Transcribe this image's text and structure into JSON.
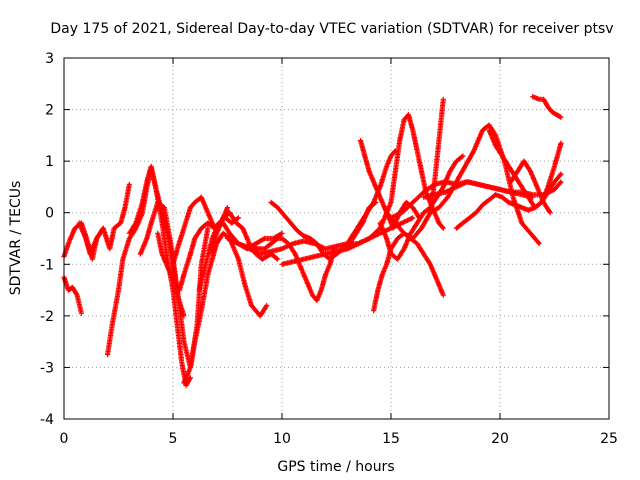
{
  "chart_data": {
    "type": "scatter",
    "title": "Day 175 of 2021, Sidereal Day-to-day VTEC variation (SDTVAR) for receiver ptsv",
    "xlabel": "GPS time / hours",
    "ylabel": "SDTVAR / TECUs",
    "xlim": [
      0,
      25
    ],
    "ylim": [
      -4,
      3
    ],
    "xticks": [
      "0",
      "5",
      "10",
      "15",
      "20",
      "25"
    ],
    "yticks": [
      "-4",
      "-3",
      "-2",
      "-1",
      "0",
      "1",
      "2",
      "3"
    ],
    "grid": true,
    "marker": "plus",
    "color": "#ff0000",
    "series": [
      {
        "x": [
          0.0,
          0.2,
          0.5,
          0.8,
          1.0,
          1.3,
          1.5,
          1.8,
          2.1,
          2.3,
          2.6,
          2.8,
          3.0
        ],
        "y": [
          -0.85,
          -0.6,
          -0.3,
          -0.2,
          -0.45,
          -0.9,
          -0.5,
          -0.3,
          -0.7,
          -0.3,
          -0.2,
          0.1,
          0.55
        ]
      },
      {
        "x": [
          0.0,
          0.2,
          0.4,
          0.6,
          0.8
        ],
        "y": [
          -1.25,
          -1.5,
          -1.45,
          -1.6,
          -1.95
        ]
      },
      {
        "x": [
          0.7,
          1.0,
          1.2,
          1.5,
          1.8
        ],
        "y": [
          -0.2,
          -0.5,
          -0.8,
          -0.5,
          -0.3
        ]
      },
      {
        "x": [
          2.0,
          2.2,
          2.5,
          2.7,
          3.0,
          3.3,
          3.6,
          3.8,
          4.0,
          4.2,
          4.5,
          4.7,
          5.0,
          5.2,
          5.4,
          5.6,
          5.8
        ],
        "y": [
          -2.75,
          -2.2,
          -1.5,
          -0.9,
          -0.5,
          -0.3,
          0.0,
          0.5,
          0.85,
          0.5,
          -0.2,
          -0.8,
          -1.5,
          -2.2,
          -2.9,
          -3.35,
          -3.2
        ]
      },
      {
        "x": [
          3.0,
          3.3,
          3.6,
          3.8,
          4.0,
          4.2,
          4.5,
          4.8,
          5.0,
          5.2,
          5.5
        ],
        "y": [
          -0.4,
          -0.2,
          0.2,
          0.6,
          0.9,
          0.5,
          0.0,
          -0.5,
          -1.0,
          -1.6,
          -2.0
        ]
      },
      {
        "x": [
          3.5,
          3.8,
          4.0,
          4.3,
          4.6,
          4.9,
          5.2,
          5.5,
          5.8,
          6.1,
          6.3,
          6.6
        ],
        "y": [
          -0.8,
          -0.5,
          -0.2,
          0.2,
          0.1,
          -0.6,
          -1.5,
          -2.5,
          -3.0,
          -2.2,
          -1.0,
          -0.3
        ]
      },
      {
        "x": [
          5.0,
          5.2,
          5.5,
          5.8,
          6.0,
          6.3,
          6.6,
          6.9,
          7.2,
          7.5
        ],
        "y": [
          -1.0,
          -0.7,
          -0.3,
          0.1,
          0.2,
          0.3,
          0.0,
          -0.3,
          -0.2,
          0.1
        ]
      },
      {
        "x": [
          4.3,
          4.5,
          4.8,
          5.0,
          5.3,
          5.5,
          5.8,
          6.0,
          6.3,
          6.6,
          6.9,
          7.1,
          7.4,
          7.7,
          8.0
        ],
        "y": [
          -0.4,
          -0.8,
          -1.1,
          -1.3,
          -1.5,
          -1.2,
          -0.8,
          -0.5,
          -0.3,
          -0.2,
          -0.3,
          -0.2,
          -0.1,
          -0.2,
          -0.1
        ]
      },
      {
        "x": [
          5.5,
          5.8,
          6.0,
          6.3,
          6.6,
          7.0,
          7.3,
          7.6,
          8.0,
          8.3,
          8.6,
          9.0,
          9.3
        ],
        "y": [
          -3.3,
          -3.0,
          -2.5,
          -1.9,
          -1.2,
          -0.6,
          -0.4,
          -0.5,
          -0.9,
          -1.4,
          -1.8,
          -2.0,
          -1.8
        ]
      },
      {
        "x": [
          6.2,
          6.5,
          6.8,
          7.0,
          7.3,
          7.6,
          8.0,
          8.4,
          8.8,
          9.2,
          9.6,
          10.0
        ],
        "y": [
          -1.5,
          -1.0,
          -0.5,
          -0.3,
          -0.2,
          -0.4,
          -0.6,
          -0.7,
          -0.6,
          -0.5,
          -0.5,
          -0.4
        ]
      },
      {
        "x": [
          6.8,
          7.0,
          7.3,
          7.6,
          7.9,
          8.2,
          8.5,
          8.8,
          9.1,
          9.5,
          9.8
        ],
        "y": [
          -0.8,
          -0.4,
          -0.1,
          0.0,
          -0.2,
          -0.3,
          -0.6,
          -0.8,
          -0.9,
          -0.8,
          -0.9
        ]
      },
      {
        "x": [
          7.8,
          8.0,
          8.3,
          8.6,
          8.9,
          9.2,
          9.5,
          9.8,
          10.0,
          10.3,
          10.6,
          10.9,
          11.2,
          11.4,
          11.6,
          11.8,
          12.0,
          12.2,
          12.4
        ],
        "y": [
          -0.55,
          -0.6,
          -0.65,
          -0.65,
          -0.7,
          -0.7,
          -0.6,
          -0.5,
          -0.5,
          -0.6,
          -0.8,
          -1.1,
          -1.4,
          -1.6,
          -1.7,
          -1.5,
          -1.2,
          -1.0,
          -0.7
        ]
      },
      {
        "x": [
          7.5,
          8.0,
          8.5,
          9.0,
          9.5,
          10.0,
          10.5,
          11.0,
          11.5,
          12.0,
          12.5,
          13.0,
          13.5,
          14.0
        ],
        "y": [
          -0.5,
          -0.6,
          -0.7,
          -0.8,
          -0.75,
          -0.7,
          -0.6,
          -0.55,
          -0.6,
          -0.7,
          -0.65,
          -0.6,
          -0.6,
          -0.5
        ]
      },
      {
        "x": [
          9.5,
          9.8,
          10.1,
          10.4,
          10.7,
          11.0,
          11.3,
          11.6,
          11.9,
          12.2,
          12.5,
          12.8,
          13.1,
          13.4,
          13.7,
          14.0,
          14.3
        ],
        "y": [
          0.2,
          0.1,
          -0.05,
          -0.2,
          -0.35,
          -0.45,
          -0.5,
          -0.6,
          -0.8,
          -0.9,
          -0.8,
          -0.7,
          -0.6,
          -0.4,
          -0.2,
          0.1,
          0.2
        ]
      },
      {
        "x": [
          10.0,
          10.5,
          11.0,
          11.5,
          12.0,
          12.5,
          13.0,
          13.5,
          14.0,
          14.5,
          15.0,
          15.5,
          16.0
        ],
        "y": [
          -1.0,
          -0.95,
          -0.9,
          -0.85,
          -0.8,
          -0.75,
          -0.7,
          -0.6,
          -0.5,
          -0.4,
          -0.3,
          -0.2,
          -0.1
        ]
      },
      {
        "x": [
          12.5,
          13.0,
          13.3,
          13.6,
          13.9,
          14.2,
          14.5,
          14.8,
          15.0,
          15.2
        ],
        "y": [
          -0.8,
          -0.6,
          -0.4,
          -0.2,
          0.0,
          0.2,
          0.5,
          0.9,
          1.1,
          1.2
        ]
      },
      {
        "x": [
          13.0,
          13.5,
          14.0,
          14.5,
          15.0,
          15.2,
          15.4,
          15.6,
          15.8,
          16.0,
          16.2,
          16.4,
          16.6,
          16.8,
          17.0,
          17.2,
          17.4
        ],
        "y": [
          -0.7,
          -0.6,
          -0.5,
          -0.3,
          0.2,
          0.8,
          1.4,
          1.8,
          1.9,
          1.6,
          1.2,
          0.8,
          0.4,
          0.2,
          0.0,
          -0.2,
          -0.3
        ]
      },
      {
        "x": [
          14.2,
          14.4,
          14.6,
          14.8,
          15.0,
          15.3,
          15.6,
          15.9,
          16.2,
          16.5,
          16.8,
          17.1,
          17.4
        ],
        "y": [
          -1.9,
          -1.5,
          -1.2,
          -1.0,
          -0.7,
          -0.5,
          -0.4,
          -0.5,
          -0.6,
          -0.8,
          -1.0,
          -1.3,
          -1.6
        ]
      },
      {
        "x": [
          13.6,
          13.8,
          14.0,
          14.3,
          14.6,
          14.9,
          15.1,
          15.4,
          15.7,
          16.0,
          16.3
        ],
        "y": [
          1.4,
          1.1,
          0.8,
          0.5,
          0.2,
          -0.1,
          -0.3,
          0.0,
          0.2,
          0.1,
          -0.1
        ]
      },
      {
        "x": [
          14.8,
          15.2,
          15.6,
          16.0,
          16.4,
          16.8,
          17.0,
          17.2,
          17.4
        ],
        "y": [
          0.0,
          -0.2,
          -0.4,
          -0.5,
          -0.3,
          0.0,
          0.6,
          1.4,
          2.2
        ]
      },
      {
        "x": [
          14.5,
          14.8,
          15.0,
          15.3,
          15.6,
          15.9,
          16.2,
          16.5,
          16.8,
          17.1,
          17.4,
          17.7,
          18.0,
          18.3
        ],
        "y": [
          -0.2,
          -0.5,
          -0.8,
          -0.9,
          -0.7,
          -0.4,
          -0.2,
          0.0,
          0.1,
          0.3,
          0.5,
          0.8,
          1.0,
          1.1
        ]
      },
      {
        "x": [
          15.0,
          15.5,
          16.0,
          16.5,
          17.0,
          17.5,
          18.0,
          18.5,
          19.0,
          19.5,
          20.0,
          20.5,
          21.0,
          21.5
        ],
        "y": [
          -0.1,
          0.0,
          0.2,
          0.4,
          0.55,
          0.6,
          0.55,
          0.6,
          0.55,
          0.5,
          0.45,
          0.4,
          0.35,
          0.3
        ]
      },
      {
        "x": [
          16.5,
          17.0,
          17.5,
          18.0,
          18.5,
          19.0,
          19.5,
          20.0,
          20.5,
          21.0,
          21.5,
          22.0,
          22.5,
          22.8
        ],
        "y": [
          0.3,
          0.35,
          0.4,
          0.5,
          0.6,
          0.55,
          0.5,
          0.45,
          0.4,
          0.4,
          0.35,
          0.35,
          0.45,
          0.6
        ]
      },
      {
        "x": [
          16.8,
          17.2,
          17.6,
          18.0,
          18.4,
          18.8,
          19.2,
          19.5,
          19.8,
          20.2,
          20.6,
          21.0,
          21.4,
          21.8
        ],
        "y": [
          0.0,
          0.1,
          0.3,
          0.6,
          0.9,
          1.2,
          1.6,
          1.7,
          1.5,
          1.0,
          0.3,
          -0.2,
          -0.4,
          -0.6
        ]
      },
      {
        "x": [
          18.0,
          18.3,
          18.6,
          18.9,
          19.2,
          19.5,
          19.8,
          20.1,
          20.4,
          20.7,
          21.0,
          21.3,
          21.6,
          21.9,
          22.2,
          22.5,
          22.8
        ],
        "y": [
          -0.3,
          -0.2,
          -0.1,
          0.0,
          0.15,
          0.25,
          0.35,
          0.3,
          0.2,
          0.15,
          0.1,
          0.05,
          0.1,
          0.2,
          0.4,
          0.6,
          0.75
        ]
      },
      {
        "x": [
          19.5,
          19.8,
          20.1,
          20.4,
          20.7,
          21.0,
          21.3,
          21.6,
          21.9,
          22.2,
          22.5,
          22.8
        ],
        "y": [
          1.6,
          1.3,
          1.1,
          0.9,
          0.7,
          0.5,
          0.3,
          0.1,
          0.2,
          0.5,
          0.9,
          1.35
        ]
      },
      {
        "x": [
          20.5,
          20.8,
          21.1,
          21.4,
          21.7,
          22.0,
          22.3
        ],
        "y": [
          0.6,
          0.8,
          1.0,
          0.8,
          0.5,
          0.2,
          0.0
        ]
      },
      {
        "x": [
          21.5,
          21.8,
          22.0,
          22.2,
          22.4,
          22.6,
          22.8
        ],
        "y": [
          2.25,
          2.2,
          2.2,
          2.05,
          1.95,
          1.9,
          1.85
        ]
      }
    ]
  }
}
